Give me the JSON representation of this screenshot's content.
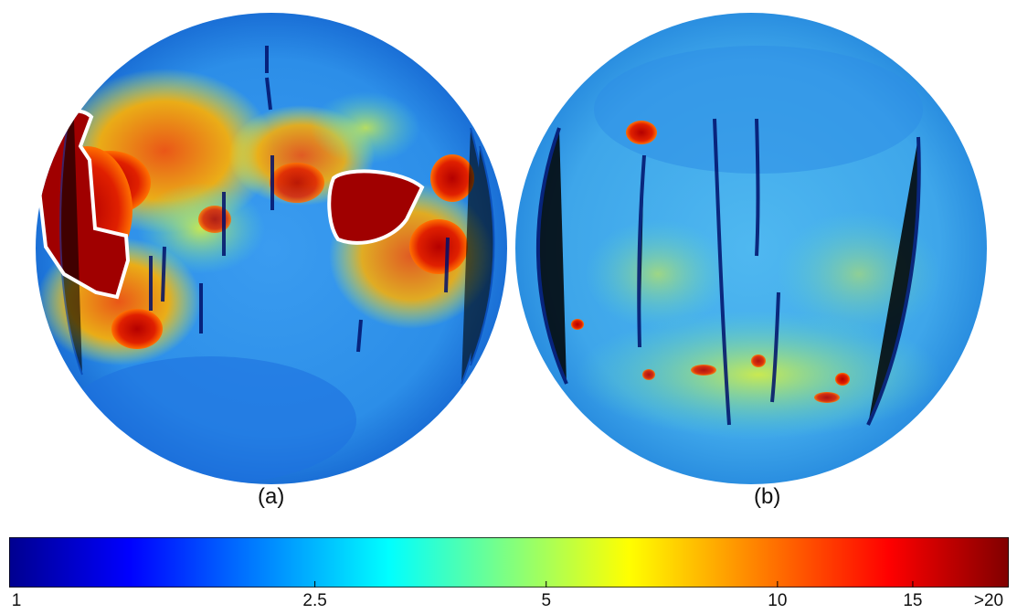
{
  "panels": [
    {
      "id": "a",
      "label": "(a)"
    },
    {
      "id": "b",
      "label": "(b)"
    }
  ],
  "colorbar": {
    "colormap": "jet",
    "scale": "log",
    "range": [
      1,
      20
    ],
    "ticks": [
      "1",
      "2.5",
      "5",
      "10",
      "15",
      ">20"
    ],
    "colors": [
      "#00008f",
      "#0000ff",
      "#0080ff",
      "#00ffff",
      "#80ff80",
      "#ffff00",
      "#ff8000",
      "#ff0000",
      "#800000"
    ]
  }
}
